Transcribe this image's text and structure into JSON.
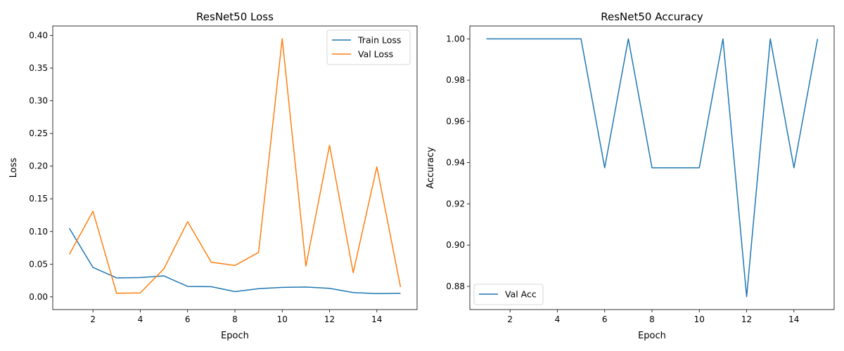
{
  "chart_data": [
    {
      "type": "line",
      "title": "ResNet50 Loss",
      "xlabel": "Epoch",
      "ylabel": "Loss",
      "x": [
        1,
        2,
        3,
        4,
        5,
        6,
        7,
        8,
        9,
        10,
        11,
        12,
        13,
        14,
        15
      ],
      "xlim": [
        0.3,
        15.7
      ],
      "ylim": [
        -0.0195,
        0.4145
      ],
      "xticks": [
        2,
        4,
        6,
        8,
        10,
        12,
        14
      ],
      "yticks": [
        0.0,
        0.05,
        0.1,
        0.15,
        0.2,
        0.25,
        0.3,
        0.35,
        0.4
      ],
      "ytick_labels": [
        "0.00",
        "0.05",
        "0.10",
        "0.15",
        "0.20",
        "0.25",
        "0.30",
        "0.35",
        "0.40"
      ],
      "legend_position": "top-right",
      "series": [
        {
          "name": "Train Loss",
          "color": "#1f77b4",
          "values": [
            0.105,
            0.045,
            0.029,
            0.0295,
            0.032,
            0.016,
            0.0155,
            0.008,
            0.0125,
            0.0145,
            0.015,
            0.013,
            0.0065,
            0.005,
            0.0055
          ]
        },
        {
          "name": "Val Loss",
          "color": "#ff7f0e",
          "values": [
            0.065,
            0.131,
            0.0055,
            0.006,
            0.043,
            0.115,
            0.053,
            0.048,
            0.068,
            0.395,
            0.047,
            0.232,
            0.037,
            0.199,
            0.015
          ]
        }
      ]
    },
    {
      "type": "line",
      "title": "ResNet50 Accuracy",
      "xlabel": "Epoch",
      "ylabel": "Accuracy",
      "x": [
        1,
        2,
        3,
        4,
        5,
        6,
        7,
        8,
        9,
        10,
        11,
        12,
        13,
        14,
        15
      ],
      "xlim": [
        0.3,
        15.7
      ],
      "ylim": [
        0.86875,
        1.00625
      ],
      "xticks": [
        2,
        4,
        6,
        8,
        10,
        12,
        14
      ],
      "yticks": [
        0.88,
        0.9,
        0.92,
        0.94,
        0.96,
        0.98,
        1.0
      ],
      "ytick_labels": [
        "0.88",
        "0.90",
        "0.92",
        "0.94",
        "0.96",
        "0.98",
        "1.00"
      ],
      "legend_position": "bottom-left",
      "series": [
        {
          "name": "Val Acc",
          "color": "#1f77b4",
          "values": [
            1.0,
            1.0,
            1.0,
            1.0,
            1.0,
            0.9375,
            1.0,
            0.9375,
            0.9375,
            0.9375,
            1.0,
            0.875,
            1.0,
            0.9375,
            1.0
          ]
        }
      ]
    }
  ]
}
